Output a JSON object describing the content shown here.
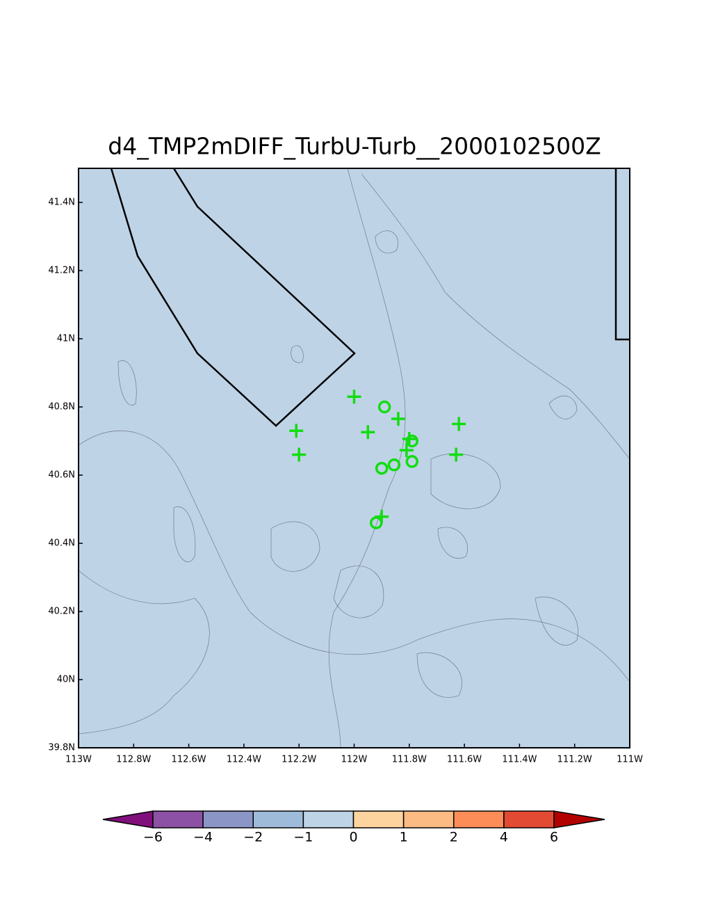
{
  "chart_data": {
    "type": "map",
    "title": "d4_TMP2mDIFF_TurbU-Turb__2000102500Z",
    "xlim": [
      -113,
      -111
    ],
    "ylim": [
      39.8,
      41.5
    ],
    "xticks": [
      {
        "value": -113,
        "label": "113W"
      },
      {
        "value": -112.8,
        "label": "112.8W"
      },
      {
        "value": -112.6,
        "label": "112.6W"
      },
      {
        "value": -112.4,
        "label": "112.4W"
      },
      {
        "value": -112.2,
        "label": "112.2W"
      },
      {
        "value": -112,
        "label": "112W"
      },
      {
        "value": -111.8,
        "label": "111.8W"
      },
      {
        "value": -111.6,
        "label": "111.6W"
      },
      {
        "value": -111.4,
        "label": "111.4W"
      },
      {
        "value": -111.2,
        "label": "111.2W"
      },
      {
        "value": -111,
        "label": "111W"
      }
    ],
    "yticks": [
      {
        "value": 39.8,
        "label": "39.8N"
      },
      {
        "value": 40,
        "label": "40N"
      },
      {
        "value": 40.2,
        "label": "40.2N"
      },
      {
        "value": 40.4,
        "label": "40.4N"
      },
      {
        "value": 40.6,
        "label": "40.6N"
      },
      {
        "value": 40.8,
        "label": "40.8N"
      },
      {
        "value": 41,
        "label": "41N"
      },
      {
        "value": 41.2,
        "label": "41.2N"
      },
      {
        "value": 41.4,
        "label": "41.4N"
      }
    ],
    "background": "#bfd3e6",
    "series": [
      {
        "marker": "plus",
        "color": "#11dd11",
        "x": [
          -112.0,
          -111.84,
          -111.62,
          -112.21,
          -111.95,
          -111.8,
          -111.81,
          -112.2,
          -111.63,
          -111.9
        ],
        "y": [
          40.83,
          40.765,
          40.75,
          40.73,
          40.726,
          40.706,
          40.673,
          40.66,
          40.66,
          40.478
        ]
      },
      {
        "marker": "circle",
        "color": "#11dd11",
        "x": [
          -111.89,
          -111.79,
          -111.855,
          -111.9,
          -111.79,
          -111.92
        ],
        "y": [
          40.8,
          40.7,
          40.63,
          40.62,
          40.64,
          40.46
        ]
      }
    ],
    "colorbar": {
      "levels": [
        {
          "value": -6,
          "label": "−6"
        },
        {
          "value": -4,
          "label": "−4"
        },
        {
          "value": -2,
          "label": "−2"
        },
        {
          "value": -1,
          "label": "−1"
        },
        0,
        1,
        2,
        4,
        6
      ],
      "colors": [
        "#810f7c",
        "#8c51a5",
        "#8c96c6",
        "#9ebcda",
        "#bfd3e6",
        "#fdd49e",
        "#fdbb84",
        "#fc8d59",
        "#e34a33",
        "#b30000"
      ]
    }
  }
}
